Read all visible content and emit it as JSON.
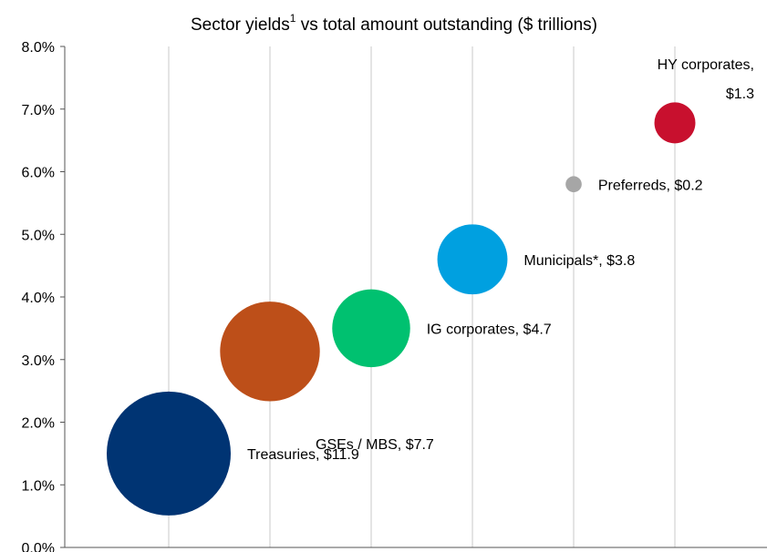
{
  "chart_data": {
    "type": "scatter",
    "title": "Sector yields",
    "title_superscript": "1",
    "title_suffix": " vs total amount outstanding ($ trillions)",
    "xlabel": "",
    "ylabel": "",
    "x_range": [
      0,
      7
    ],
    "ylim": [
      0,
      8
    ],
    "y_ticks": [
      "0.0%",
      "1.0%",
      "2.0%",
      "3.0%",
      "4.0%",
      "5.0%",
      "6.0%",
      "7.0%",
      "8.0%"
    ],
    "grid": "vertical",
    "points": [
      {
        "label": "Treasuries, $11.9",
        "x": 1,
        "y": 1.5,
        "size": 11.9,
        "color": "#003473"
      },
      {
        "label": "GSEs / MBS, $7.7",
        "x": 2,
        "y": 3.13,
        "size": 7.7,
        "color": "#bd4f19"
      },
      {
        "label": "IG corporates, $4.7",
        "x": 3,
        "y": 3.5,
        "size": 4.7,
        "color": "#00c170"
      },
      {
        "label": "Municipals*, $3.8",
        "x": 4,
        "y": 4.6,
        "size": 3.8,
        "color": "#00a0e0"
      },
      {
        "label": "Preferreds, $0.2",
        "x": 5,
        "y": 5.8,
        "size": 0.2,
        "color": "#a6a6a6"
      },
      {
        "label": "HY corporates,",
        "label_line2": "$1.3",
        "x": 6,
        "y": 6.78,
        "size": 1.3,
        "color": "#c8102e"
      }
    ]
  }
}
